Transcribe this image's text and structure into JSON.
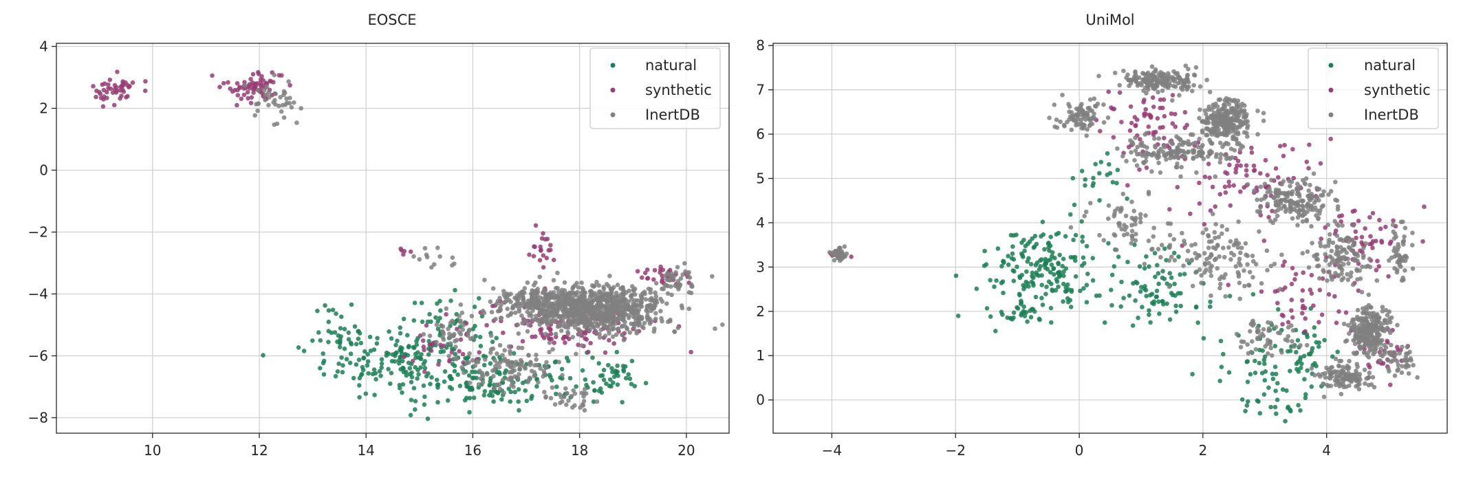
{
  "chart_data": [
    {
      "type": "scatter",
      "title": "EOSCE",
      "xlabel": "",
      "ylabel": "",
      "xlim": [
        8.2,
        20.8
      ],
      "ylim": [
        -8.5,
        4.1
      ],
      "xticks": [
        10,
        12,
        14,
        16,
        18,
        20
      ],
      "yticks": [
        -8,
        -6,
        -4,
        -2,
        0,
        2,
        4
      ],
      "grid": true,
      "legend_position": "top-right",
      "series": [
        {
          "name": "natural",
          "color": "#1b7f55",
          "clusters": [
            {
              "center": [
                14.8,
                -6.2
              ],
              "spread": [
                1.3,
                1.0
              ],
              "count": 190
            },
            {
              "center": [
                16.8,
                -6.8
              ],
              "spread": [
                1.3,
                0.7
              ],
              "count": 120
            },
            {
              "center": [
                13.6,
                -5.2
              ],
              "spread": [
                0.5,
                0.7
              ],
              "count": 40
            },
            {
              "center": [
                15.5,
                -4.8
              ],
              "spread": [
                0.6,
                0.7
              ],
              "count": 30
            },
            {
              "center": [
                18.6,
                -6.8
              ],
              "spread": [
                0.5,
                0.6
              ],
              "count": 40
            }
          ]
        },
        {
          "name": "synthetic",
          "color": "#963d74",
          "clusters": [
            {
              "center": [
                9.3,
                2.6
              ],
              "spread": [
                0.35,
                0.4
              ],
              "count": 45
            },
            {
              "center": [
                11.9,
                2.7
              ],
              "spread": [
                0.45,
                0.45
              ],
              "count": 70
            },
            {
              "center": [
                17.3,
                -2.4
              ],
              "spread": [
                0.3,
                0.5
              ],
              "count": 20
            },
            {
              "center": [
                14.7,
                -2.6
              ],
              "spread": [
                0.1,
                0.1
              ],
              "count": 5
            },
            {
              "center": [
                17.8,
                -5.0
              ],
              "spread": [
                1.3,
                0.7
              ],
              "count": 120
            },
            {
              "center": [
                19.6,
                -3.4
              ],
              "spread": [
                0.4,
                0.3
              ],
              "count": 30
            },
            {
              "center": [
                15.5,
                -5.8
              ],
              "spread": [
                0.7,
                0.6
              ],
              "count": 30
            }
          ]
        },
        {
          "name": "InertDB",
          "color": "#808080",
          "clusters": [
            {
              "center": [
                18.3,
                -4.5
              ],
              "spread": [
                1.1,
                0.6
              ],
              "count": 800
            },
            {
              "center": [
                17.2,
                -4.2
              ],
              "spread": [
                0.7,
                0.4
              ],
              "count": 150
            },
            {
              "center": [
                16.7,
                -6.3
              ],
              "spread": [
                0.8,
                0.6
              ],
              "count": 110
            },
            {
              "center": [
                12.3,
                2.2
              ],
              "spread": [
                0.4,
                0.5
              ],
              "count": 40
            },
            {
              "center": [
                15.6,
                -5.2
              ],
              "spread": [
                0.5,
                0.6
              ],
              "count": 40
            },
            {
              "center": [
                15.3,
                -2.8
              ],
              "spread": [
                0.4,
                0.4
              ],
              "count": 12
            },
            {
              "center": [
                19.8,
                -3.6
              ],
              "spread": [
                0.3,
                0.4
              ],
              "count": 40
            },
            {
              "center": [
                17.8,
                -7.4
              ],
              "spread": [
                0.5,
                0.3
              ],
              "count": 30
            }
          ]
        }
      ]
    },
    {
      "type": "scatter",
      "title": "UniMol",
      "xlabel": "",
      "ylabel": "",
      "xlim": [
        -4.95,
        5.95
      ],
      "ylim": [
        -0.75,
        8.05
      ],
      "xticks": [
        -4,
        -2,
        0,
        2,
        4
      ],
      "yticks": [
        0,
        1,
        2,
        3,
        4,
        5,
        6,
        7,
        8
      ],
      "grid": true,
      "legend_position": "top-right",
      "series": [
        {
          "name": "natural",
          "color": "#1b7f55",
          "clusters": [
            {
              "center": [
                -0.6,
                3.0
              ],
              "spread": [
                0.7,
                0.8
              ],
              "count": 170
            },
            {
              "center": [
                -1.0,
                2.0
              ],
              "spread": [
                0.4,
                0.2
              ],
              "count": 30
            },
            {
              "center": [
                1.2,
                2.5
              ],
              "spread": [
                1.0,
                0.8
              ],
              "count": 90
            },
            {
              "center": [
                3.3,
                1.0
              ],
              "spread": [
                0.8,
                0.7
              ],
              "count": 90
            },
            {
              "center": [
                0.3,
                5.0
              ],
              "spread": [
                0.4,
                0.4
              ],
              "count": 20
            },
            {
              "center": [
                3.2,
                -0.1
              ],
              "spread": [
                0.5,
                0.2
              ],
              "count": 20
            }
          ]
        },
        {
          "name": "synthetic",
          "color": "#963d74",
          "clusters": [
            {
              "center": [
                -3.9,
                3.3
              ],
              "spread": [
                0.15,
                0.12
              ],
              "count": 10
            },
            {
              "center": [
                1.0,
                6.3
              ],
              "spread": [
                0.6,
                0.6
              ],
              "count": 60
            },
            {
              "center": [
                2.5,
                5.0
              ],
              "spread": [
                1.2,
                0.8
              ],
              "count": 90
            },
            {
              "center": [
                4.6,
                3.6
              ],
              "spread": [
                0.6,
                0.6
              ],
              "count": 50
            },
            {
              "center": [
                5.0,
                1.0
              ],
              "spread": [
                0.4,
                0.4
              ],
              "count": 30
            },
            {
              "center": [
                3.6,
                2.4
              ],
              "spread": [
                0.8,
                0.7
              ],
              "count": 50
            }
          ]
        },
        {
          "name": "InertDB",
          "color": "#808080",
          "clusters": [
            {
              "center": [
                -3.9,
                3.3
              ],
              "spread": [
                0.1,
                0.12
              ],
              "count": 40
            },
            {
              "center": [
                1.3,
                7.2
              ],
              "spread": [
                0.5,
                0.2
              ],
              "count": 180
            },
            {
              "center": [
                2.4,
                6.3
              ],
              "spread": [
                0.35,
                0.4
              ],
              "count": 260
            },
            {
              "center": [
                0.0,
                6.4
              ],
              "spread": [
                0.3,
                0.3
              ],
              "count": 80
            },
            {
              "center": [
                1.5,
                5.6
              ],
              "spread": [
                0.8,
                0.3
              ],
              "count": 150
            },
            {
              "center": [
                3.5,
                4.5
              ],
              "spread": [
                0.5,
                0.4
              ],
              "count": 170
            },
            {
              "center": [
                4.2,
                3.2
              ],
              "spread": [
                0.4,
                0.5
              ],
              "count": 120
            },
            {
              "center": [
                4.7,
                1.6
              ],
              "spread": [
                0.25,
                0.45
              ],
              "count": 250
            },
            {
              "center": [
                4.3,
                0.5
              ],
              "spread": [
                0.35,
                0.25
              ],
              "count": 120
            },
            {
              "center": [
                2.2,
                3.2
              ],
              "spread": [
                0.7,
                0.7
              ],
              "count": 120
            },
            {
              "center": [
                0.8,
                4.0
              ],
              "spread": [
                0.6,
                0.6
              ],
              "count": 60
            },
            {
              "center": [
                5.2,
                3.3
              ],
              "spread": [
                0.15,
                0.6
              ],
              "count": 50
            },
            {
              "center": [
                5.2,
                0.9
              ],
              "spread": [
                0.2,
                0.3
              ],
              "count": 40
            },
            {
              "center": [
                3.0,
                1.4
              ],
              "spread": [
                0.5,
                0.4
              ],
              "count": 50
            }
          ]
        }
      ]
    }
  ]
}
